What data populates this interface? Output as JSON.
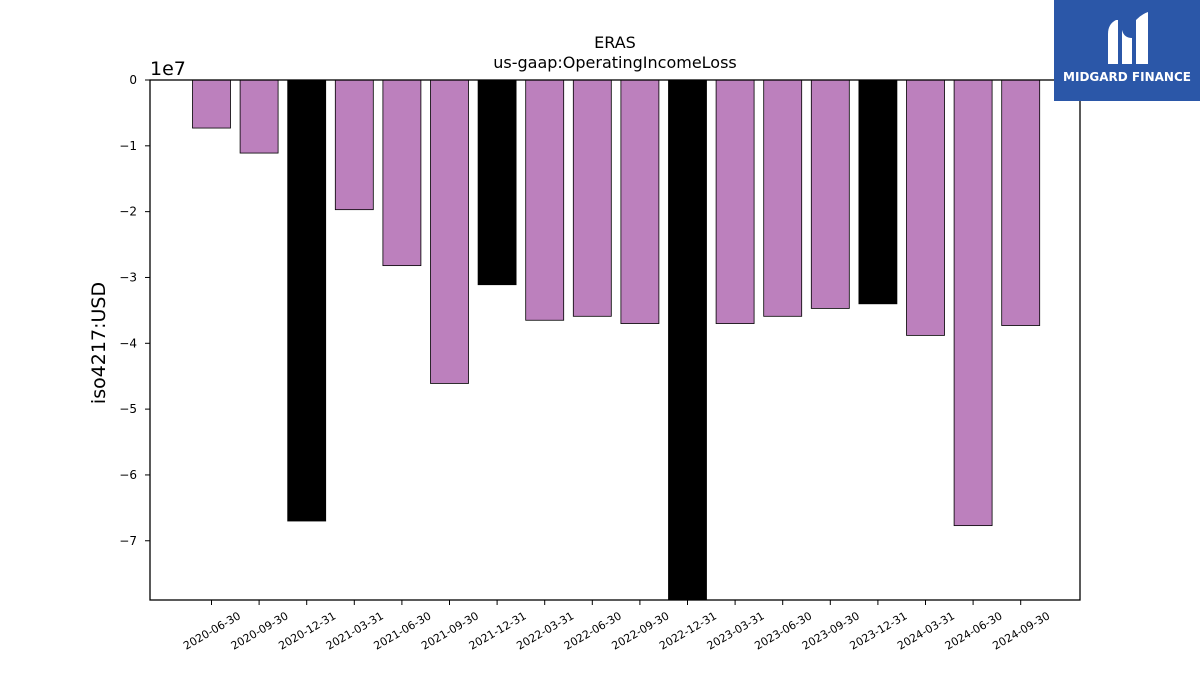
{
  "brand": {
    "name": "MIDGARD FINANCE",
    "background": "#2b57a8"
  },
  "chart_data": {
    "type": "bar",
    "title": "ERAS",
    "subtitle": "us-gaap:OperatingIncomeLoss",
    "ylabel": "iso4217:USD",
    "xlabel": "",
    "scale_label": "1e7",
    "ylim": [
      -79000000,
      0
    ],
    "yticks": [
      0,
      -10000000,
      -20000000,
      -30000000,
      -40000000,
      -50000000,
      -60000000,
      -70000000
    ],
    "ytick_labels": [
      "0",
      "−1",
      "−2",
      "−3",
      "−4",
      "−5",
      "−6",
      "−7"
    ],
    "categories": [
      "2020-06-30",
      "2020-09-30",
      "2020-12-31",
      "2021-03-31",
      "2021-06-30",
      "2021-09-30",
      "2021-12-31",
      "2022-03-31",
      "2022-06-30",
      "2022-09-30",
      "2022-12-31",
      "2023-03-31",
      "2023-06-30",
      "2023-09-30",
      "2023-12-31",
      "2024-03-31",
      "2024-06-30",
      "2024-09-30"
    ],
    "values": [
      -7300000,
      -11100000,
      -67000000,
      -19700000,
      -28200000,
      -46100000,
      -31100000,
      -36500000,
      -35900000,
      -37000000,
      -80000000,
      -37000000,
      -35900000,
      -34700000,
      -34000000,
      -38800000,
      -67700000,
      -37300000
    ],
    "bar_colors": [
      "#bc80bd",
      "#bc80bd",
      "#000000",
      "#bc80bd",
      "#bc80bd",
      "#bc80bd",
      "#000000",
      "#bc80bd",
      "#bc80bd",
      "#bc80bd",
      "#000000",
      "#bc80bd",
      "#bc80bd",
      "#bc80bd",
      "#000000",
      "#bc80bd",
      "#bc80bd",
      "#bc80bd"
    ],
    "grid": false,
    "legend": "none"
  }
}
